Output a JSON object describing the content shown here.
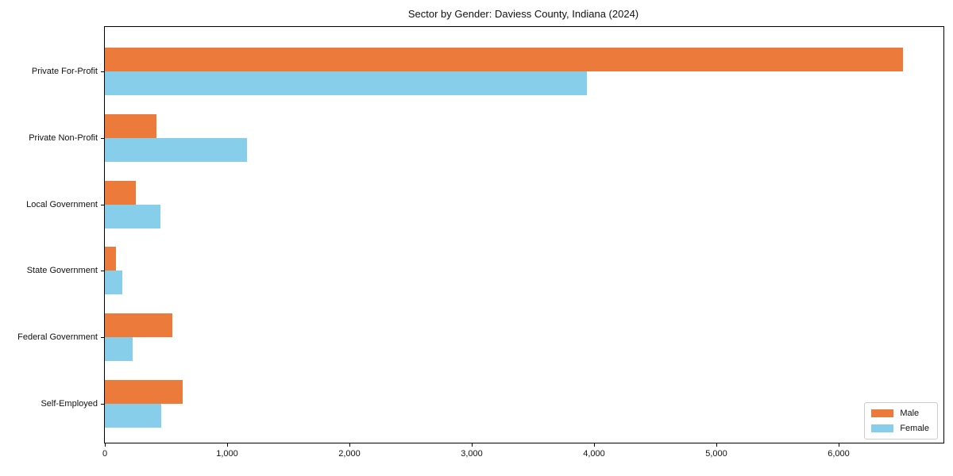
{
  "title": "Sector by Gender: Daviess County, Indiana (2024)",
  "colors": {
    "male_bar": "#EB7A3B",
    "female_bar": "#87CEEB",
    "axis": "#000000",
    "text": "#111111",
    "legend_border": "#cccccc",
    "background": "#ffffff"
  },
  "legend": {
    "position": "lower right",
    "entries": [
      {
        "label": "Male",
        "color": "#EB7A3B"
      },
      {
        "label": "Female",
        "color": "#87CEEB"
      }
    ]
  },
  "chart_data": {
    "type": "bar",
    "orientation": "horizontal",
    "title": "Sector by Gender: Daviess County, Indiana (2024)",
    "xlabel": "",
    "ylabel": "",
    "categories": [
      "Private For-Profit",
      "Private Non-Profit",
      "Local Government",
      "State Government",
      "Federal Government",
      "Self-Employed"
    ],
    "series": [
      {
        "name": "Male",
        "color": "#EB7A3B",
        "values": [
          6525,
          425,
          255,
          90,
          550,
          635
        ]
      },
      {
        "name": "Female",
        "color": "#87CEEB",
        "values": [
          3940,
          1165,
          455,
          145,
          230,
          460
        ]
      }
    ],
    "xlim": [
      0,
      6857
    ],
    "xticks": [
      0,
      1000,
      2000,
      3000,
      4000,
      5000,
      6000
    ],
    "xtick_labels": [
      "0",
      "1,000",
      "2,000",
      "3,000",
      "4,000",
      "5,000",
      "6,000"
    ],
    "grid": false,
    "legend_position": "lower right"
  }
}
